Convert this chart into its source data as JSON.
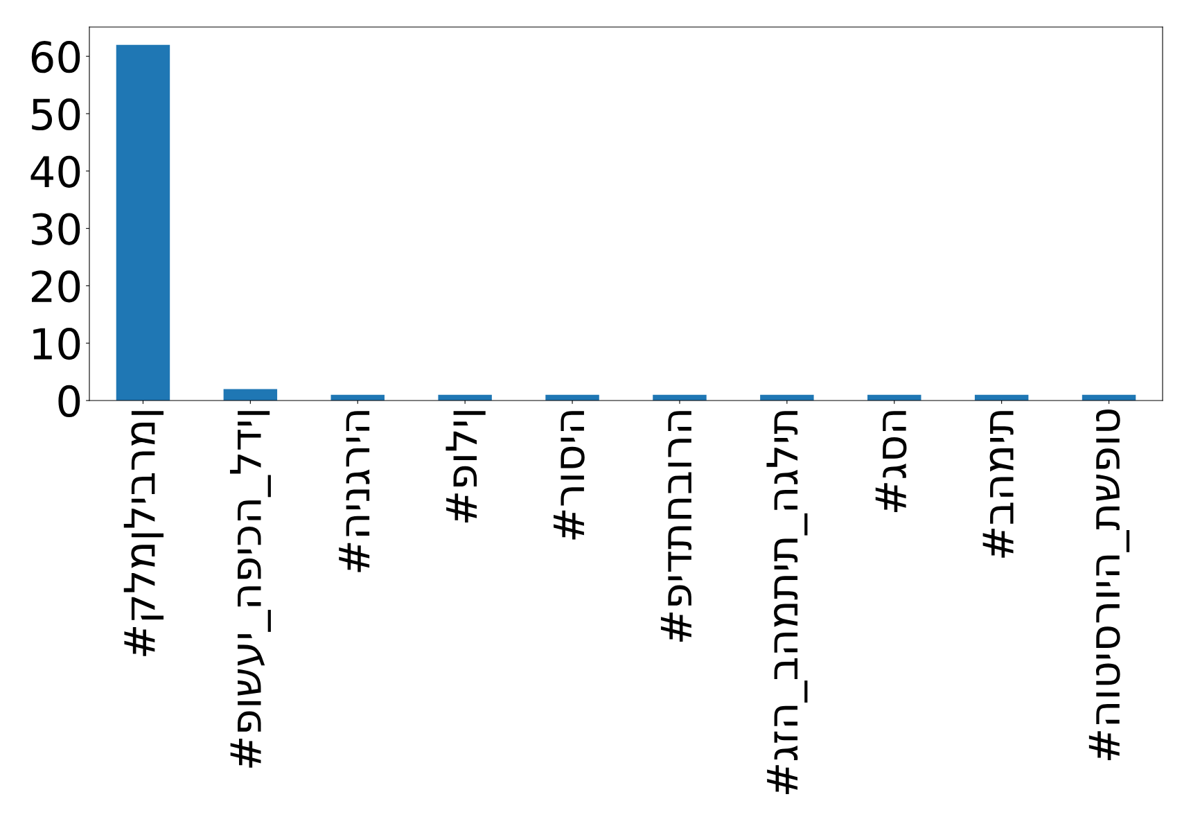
{
  "chart_data": {
    "type": "bar",
    "categories": [
      "#קלמןליברמן",
      "#פושעי_הפיכה_לדין",
      "#הינגריה",
      "#פולין",
      "#רוסיה",
      "#פידתחבורה",
      "#גזה_בהמתית_הגלית",
      "#גסה",
      "#בהמית",
      "#הוטיסרויה_תשפוט"
    ],
    "values": [
      62,
      2,
      1,
      1,
      1,
      1,
      1,
      1,
      1,
      1
    ],
    "color": "#1f77b4",
    "ylim": [
      0,
      65.1
    ],
    "yticks": [
      0,
      10,
      20,
      30,
      40,
      50,
      60
    ],
    "grid": false,
    "legend": false
  }
}
